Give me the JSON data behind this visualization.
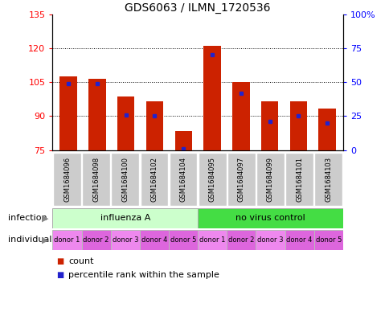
{
  "title": "GDS6063 / ILMN_1720536",
  "categories": [
    "GSM1684096",
    "GSM1684098",
    "GSM1684100",
    "GSM1684102",
    "GSM1684104",
    "GSM1684095",
    "GSM1684097",
    "GSM1684099",
    "GSM1684101",
    "GSM1684103"
  ],
  "counts": [
    107.5,
    106.5,
    98.5,
    96.5,
    83.5,
    121.0,
    105.0,
    96.5,
    96.5,
    93.5
  ],
  "percentile_ranks": [
    49,
    49,
    26,
    25,
    1,
    70,
    42,
    21,
    25,
    20
  ],
  "y_min": 75,
  "y_max": 135,
  "y_ticks": [
    75,
    90,
    105,
    120,
    135
  ],
  "right_y_ticks": [
    0,
    25,
    50,
    75,
    100
  ],
  "right_y_labels": [
    "0",
    "25",
    "50",
    "75",
    "100%"
  ],
  "bar_color": "#cc2200",
  "percentile_color": "#2222cc",
  "infection_labels": [
    "influenza A",
    "no virus control"
  ],
  "influenza_color": "#ccffcc",
  "novirus_color": "#44dd44",
  "individual_colors": [
    "#ee88ee",
    "#dd66dd",
    "#ee88ee",
    "#dd66dd",
    "#dd66dd",
    "#ee88ee",
    "#dd66dd",
    "#ee88ee",
    "#dd66dd",
    "#dd66dd"
  ],
  "individual_labels": [
    "donor 1",
    "donor 2",
    "donor 3",
    "donor 4",
    "donor 5",
    "donor 1",
    "donor 2",
    "donor 3",
    "donor 4",
    "donor 5"
  ],
  "legend_count_color": "#cc2200",
  "legend_percentile_color": "#2222cc",
  "sample_box_color": "#cccccc",
  "arrow_color": "#888888",
  "title_fontsize": 10,
  "tick_fontsize": 8,
  "label_fontsize": 7.5,
  "legend_fontsize": 8
}
